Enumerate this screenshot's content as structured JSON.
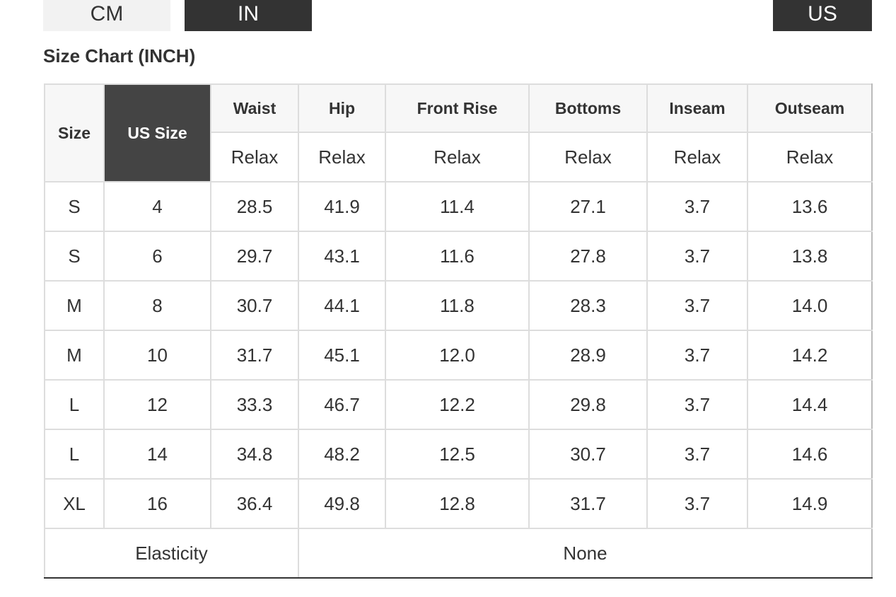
{
  "unit_tabs": [
    "CM",
    "IN",
    "US"
  ],
  "title": "Size Chart (INCH)",
  "table": {
    "columns": [
      "Size",
      "US Size",
      "Waist",
      "Hip",
      "Front Rise",
      "Bottoms",
      "Inseam",
      "Outseam"
    ],
    "subheaders": [
      "Relax",
      "Relax",
      "Relax",
      "Relax",
      "Relax",
      "Relax"
    ],
    "rows": [
      [
        "S",
        "4",
        "28.5",
        "41.9",
        "11.4",
        "27.1",
        "3.7",
        "13.6"
      ],
      [
        "S",
        "6",
        "29.7",
        "43.1",
        "11.6",
        "27.8",
        "3.7",
        "13.8"
      ],
      [
        "M",
        "8",
        "30.7",
        "44.1",
        "11.8",
        "28.3",
        "3.7",
        "14.0"
      ],
      [
        "M",
        "10",
        "31.7",
        "45.1",
        "12.0",
        "28.9",
        "3.7",
        "14.2"
      ],
      [
        "L",
        "12",
        "33.3",
        "46.7",
        "12.2",
        "29.8",
        "3.7",
        "14.4"
      ],
      [
        "L",
        "14",
        "34.8",
        "48.2",
        "12.5",
        "30.7",
        "3.7",
        "14.6"
      ],
      [
        "XL",
        "16",
        "36.4",
        "49.8",
        "12.8",
        "31.7",
        "3.7",
        "14.9"
      ]
    ],
    "footer": {
      "label": "Elasticity",
      "value": "None"
    }
  }
}
